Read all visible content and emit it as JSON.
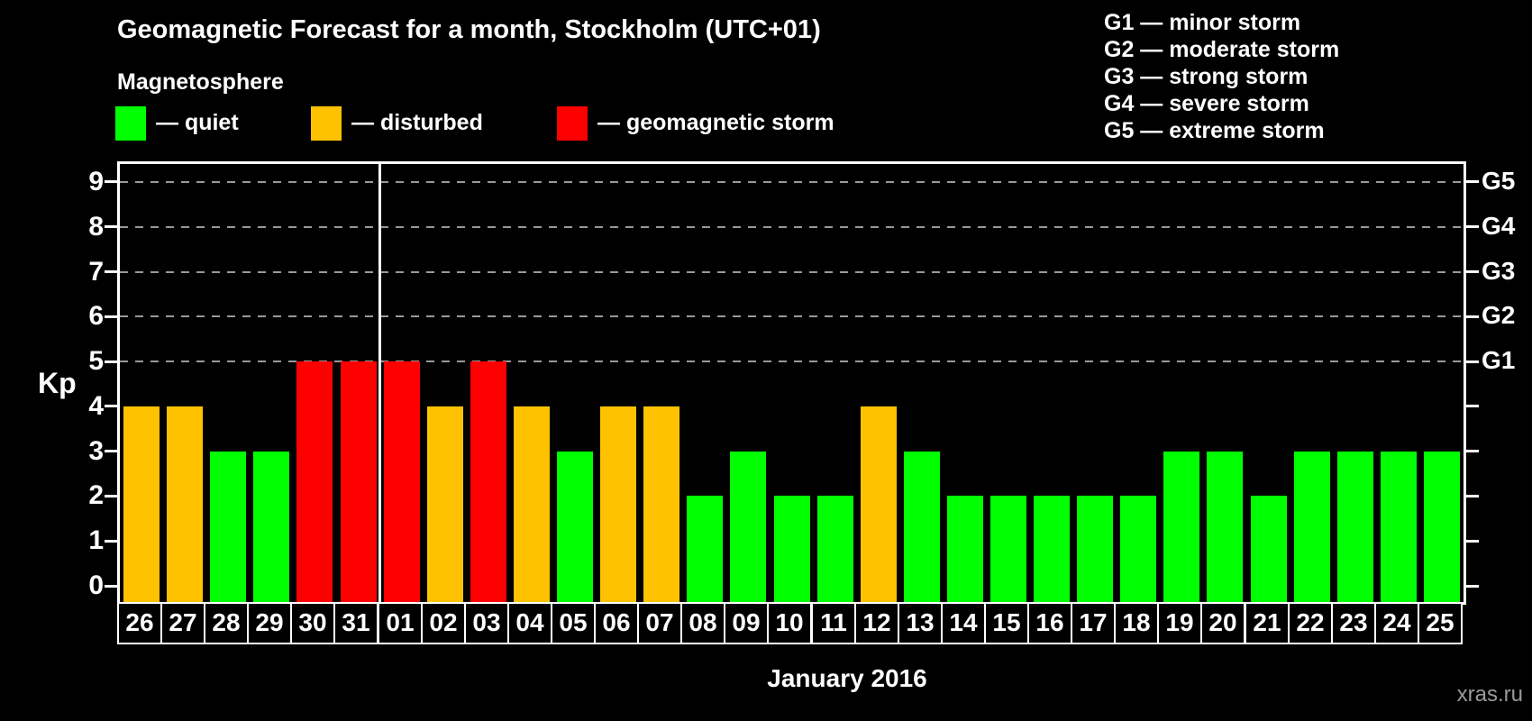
{
  "header": {
    "title": "Geomagnetic Forecast for a month, Stockholm (UTC+01)",
    "subtitle": "Magnetosphere"
  },
  "legend": {
    "items": [
      {
        "label": "— quiet",
        "status": "quiet",
        "color": "#00ff00"
      },
      {
        "label": "— disturbed",
        "status": "disturbed",
        "color": "#ffc200"
      },
      {
        "label": "— geomagnetic storm",
        "status": "storm",
        "color": "#ff0000"
      }
    ]
  },
  "storm_scale_legend": {
    "items": [
      "G1 — minor storm",
      "G2 — moderate storm",
      "G3 — strong storm",
      "G4 — severe storm",
      "G5 — extreme storm"
    ]
  },
  "axes": {
    "kp_label": "Kp",
    "x_title": "January 2016"
  },
  "watermark": "xras.ru",
  "chart_data": {
    "type": "bar",
    "title": "Geomagnetic Forecast for a month, Stockholm (UTC+01)",
    "xlabel": "January 2016",
    "ylabel": "Kp",
    "ylim": [
      0,
      9.4
    ],
    "y_ticks": [
      0,
      1,
      2,
      3,
      4,
      5,
      6,
      7,
      8,
      9
    ],
    "gridline_levels": [
      5,
      6,
      7,
      8,
      9
    ],
    "grid": "dashed horizontal lines at storm levels G1–G5 only",
    "legend_position": "top-left (magnetosphere) and top-right (G-scale)",
    "right_axis_labels": [
      {
        "level": 5,
        "label": "G1"
      },
      {
        "level": 6,
        "label": "G2"
      },
      {
        "level": 7,
        "label": "G3"
      },
      {
        "level": 8,
        "label": "G4"
      },
      {
        "level": 9,
        "label": "G5"
      }
    ],
    "colors": {
      "quiet": "#00ff00",
      "disturbed": "#ffc200",
      "storm": "#ff0000"
    },
    "year_boundary_after_index": 5,
    "categories": [
      "26",
      "27",
      "28",
      "29",
      "30",
      "31",
      "01",
      "02",
      "03",
      "04",
      "05",
      "06",
      "07",
      "08",
      "09",
      "10",
      "11",
      "12",
      "13",
      "14",
      "15",
      "16",
      "17",
      "18",
      "19",
      "20",
      "21",
      "22",
      "23",
      "24",
      "25"
    ],
    "values": [
      4,
      4,
      3,
      3,
      5,
      5,
      5,
      4,
      5,
      4,
      3,
      4,
      4,
      2,
      3,
      2,
      2,
      4,
      3,
      2,
      2,
      2,
      2,
      2,
      3,
      3,
      2,
      3,
      3,
      3,
      3
    ],
    "statuses": [
      "disturbed",
      "disturbed",
      "quiet",
      "quiet",
      "storm",
      "storm",
      "storm",
      "disturbed",
      "storm",
      "disturbed",
      "quiet",
      "disturbed",
      "disturbed",
      "quiet",
      "quiet",
      "quiet",
      "quiet",
      "disturbed",
      "quiet",
      "quiet",
      "quiet",
      "quiet",
      "quiet",
      "quiet",
      "quiet",
      "quiet",
      "quiet",
      "quiet",
      "quiet",
      "quiet",
      "quiet"
    ]
  }
}
